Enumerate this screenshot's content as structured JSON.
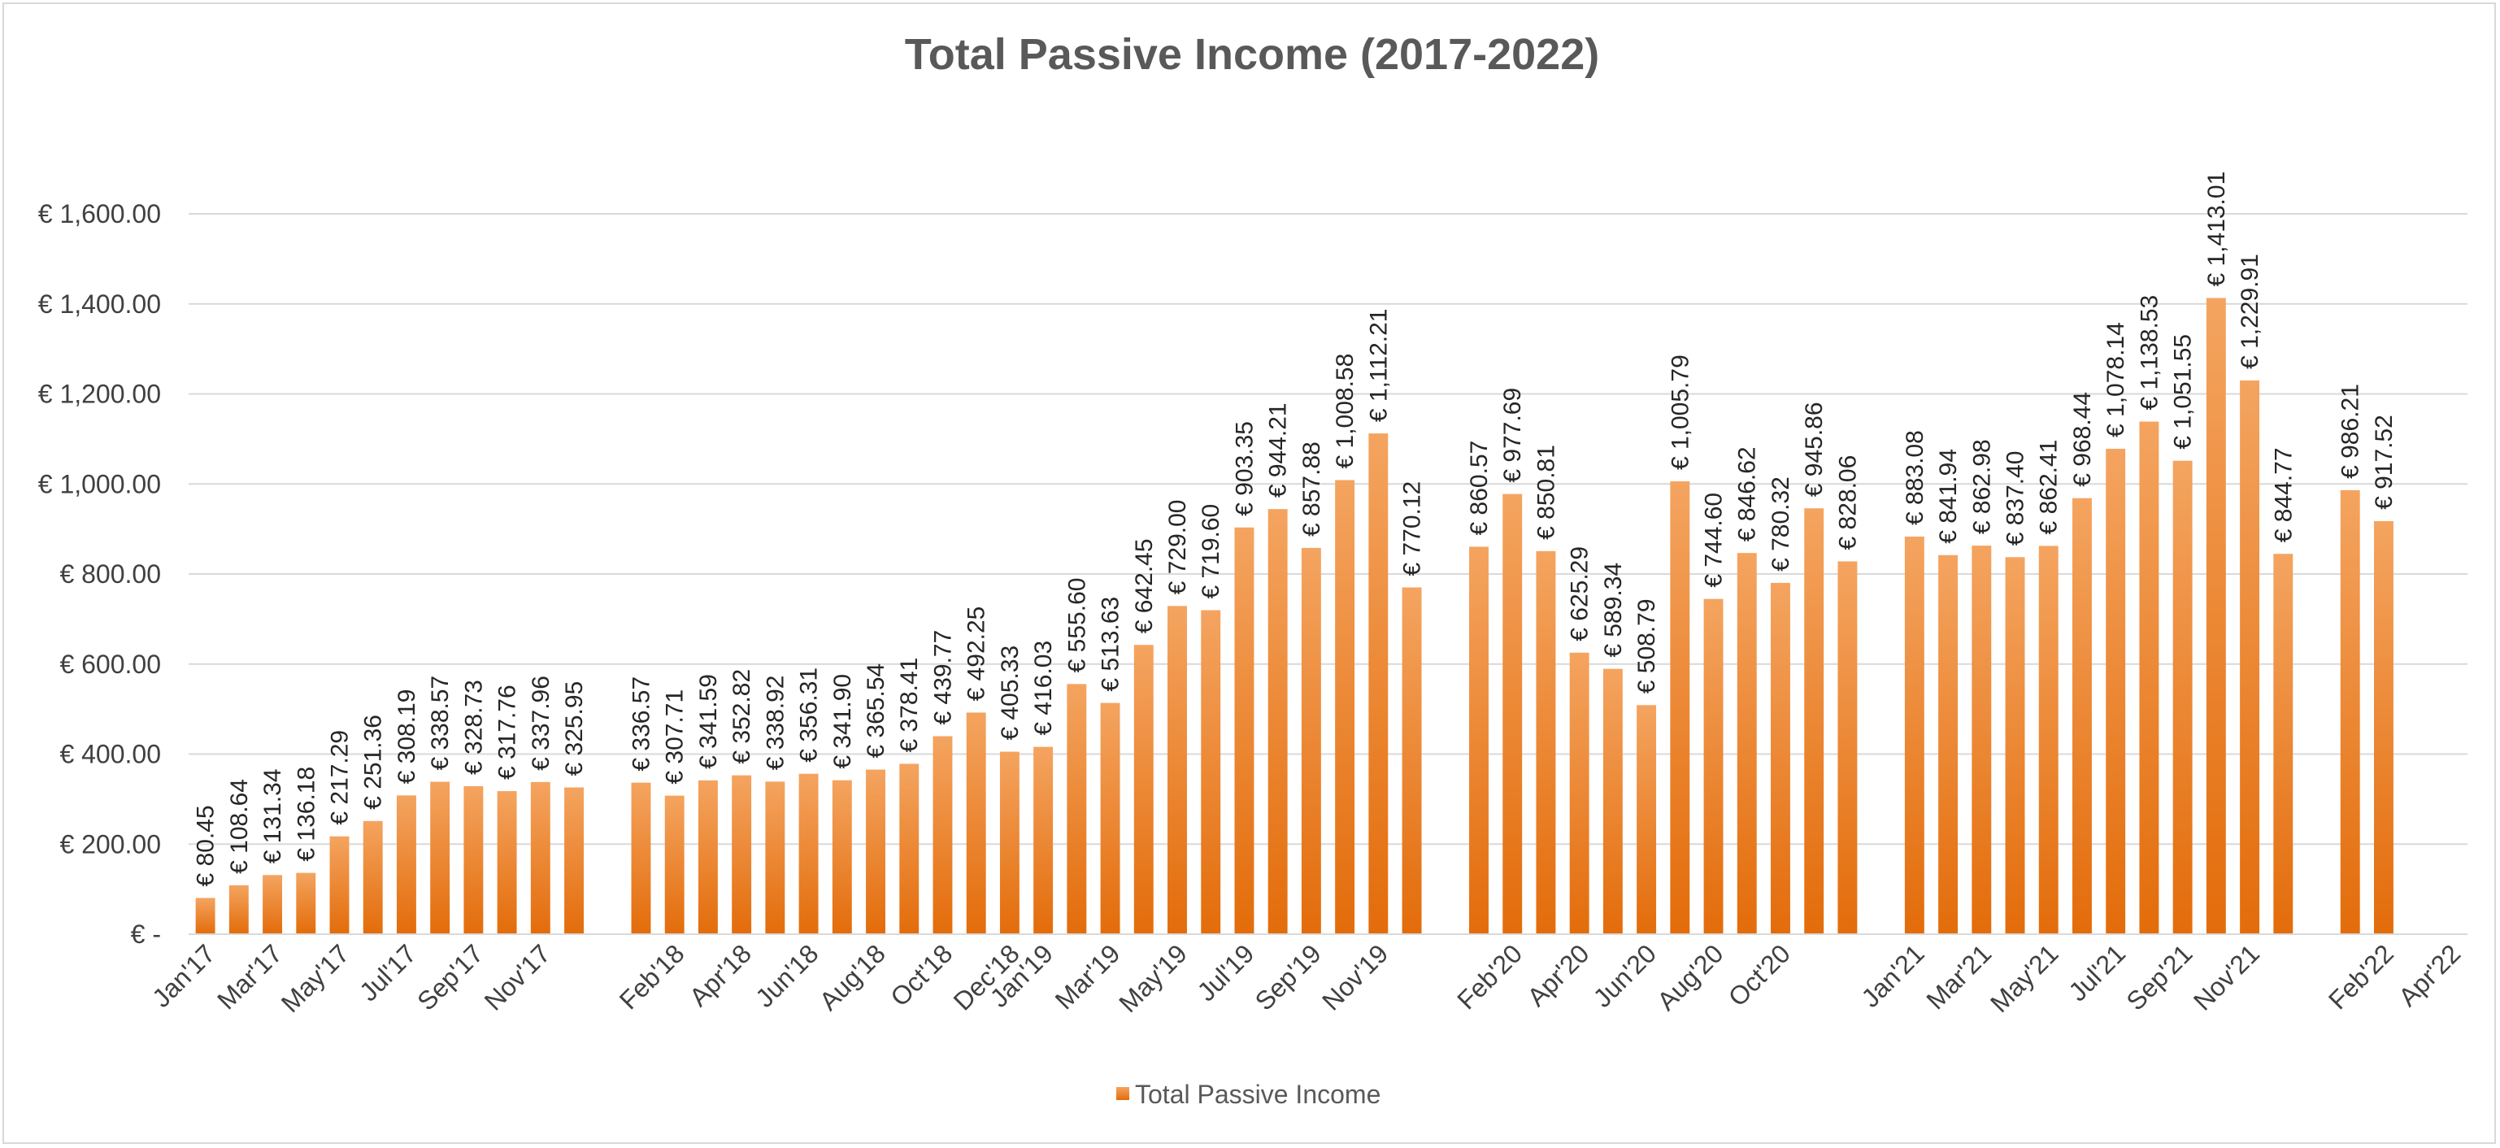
{
  "chart_data": {
    "type": "bar",
    "title": "Total Passive Income (2017-2022)",
    "xlabel": "",
    "ylabel": "",
    "ylim": [
      0,
      1600
    ],
    "grid": true,
    "legend_position": "bottom",
    "y_tick_values": [
      0,
      200,
      400,
      600,
      800,
      1000,
      1200,
      1400,
      1600
    ],
    "y_tick_labels": [
      "€ -",
      "€ 200.00",
      "€ 400.00",
      "€ 600.00",
      "€ 800.00",
      "€ 1,000.00",
      "€ 1,200.00",
      "€ 1,400.00",
      "€ 1,600.00"
    ],
    "colors": {
      "bar_top": "#f4a460",
      "bar_bottom": "#e36c0a",
      "grid": "#d9d9d9",
      "axis": "#d9d9d9"
    },
    "categories": [
      "Jan'17",
      "Feb'17",
      "Mar'17",
      "Apr'17",
      "May'17",
      "Jun'17",
      "Jul'17",
      "Aug'17",
      "Sep'17",
      "Oct'17",
      "Nov'17",
      "Dec'17",
      "",
      "Jan'18",
      "Feb'18",
      "Mar'18",
      "Apr'18",
      "May'18",
      "Jun'18",
      "Jul'18",
      "Aug'18",
      "Sep'18",
      "Oct'18",
      "Nov'18",
      "Dec'18",
      "Jan'19",
      "Feb'19",
      "Mar'19",
      "Apr'19",
      "May'19",
      "Jun'19",
      "Jul'19",
      "Aug'19",
      "Sep'19",
      "Oct'19",
      "Nov'19",
      "Dec'19",
      "",
      "Jan'20",
      "Feb'20",
      "Mar'20",
      "Apr'20",
      "May'20",
      "Jun'20",
      "Jul'20",
      "Aug'20",
      "Sep'20",
      "Oct'20",
      "Nov'20",
      "Dec'20",
      "",
      "Jan'21",
      "Feb'21",
      "Mar'21",
      "Apr'21",
      "May'21",
      "Jun'21",
      "Jul'21",
      "Aug'21",
      "Sep'21",
      "Oct'21",
      "Nov'21",
      "Dec'21",
      "",
      "Jan'22",
      "Feb'22",
      "Mar'22",
      "Apr'22"
    ],
    "x_tick_labels": [
      "Jan'17",
      "Mar'17",
      "May'17",
      "Jul'17",
      "Sep'17",
      "Nov'17",
      "Feb'18",
      "Apr'18",
      "Jun'18",
      "Aug'18",
      "Oct'18",
      "Dec'18",
      "Jan'19",
      "Mar'19",
      "May'19",
      "Jul'19",
      "Sep'19",
      "Nov'19",
      "Feb'20",
      "Apr'20",
      "Jun'20",
      "Aug'20",
      "Oct'20",
      "Jan'21",
      "Mar'21",
      "May'21",
      "Jul'21",
      "Sep'21",
      "Nov'21",
      "Feb'22",
      "Apr'22"
    ],
    "series": [
      {
        "name": "Total Passive Income",
        "values": [
          80.45,
          108.64,
          131.34,
          136.18,
          217.29,
          251.36,
          308.19,
          338.57,
          328.73,
          317.76,
          337.96,
          325.95,
          null,
          336.57,
          307.71,
          341.59,
          352.82,
          338.92,
          356.31,
          341.9,
          365.54,
          378.41,
          439.77,
          492.25,
          405.33,
          416.03,
          555.6,
          513.63,
          642.45,
          729.0,
          719.6,
          903.35,
          944.21,
          857.88,
          1008.58,
          1112.21,
          770.12,
          null,
          860.57,
          977.69,
          850.81,
          625.29,
          589.34,
          508.79,
          1005.79,
          744.6,
          846.62,
          780.32,
          945.86,
          828.06,
          null,
          883.08,
          841.94,
          862.98,
          837.4,
          862.41,
          968.44,
          1078.14,
          1138.53,
          1051.55,
          1413.01,
          1229.91,
          844.77,
          null,
          986.21,
          917.52,
          null,
          null
        ],
        "labels": [
          "€ 80.45",
          "€ 108.64",
          "€ 131.34",
          "€ 136.18",
          "€ 217.29",
          "€ 251.36",
          "€ 308.19",
          "€ 338.57",
          "€ 328.73",
          "€ 317.76",
          "€ 337.96",
          "€ 325.95",
          "",
          "€ 336.57",
          "€ 307.71",
          "€ 341.59",
          "€ 352.82",
          "€ 338.92",
          "€ 356.31",
          "€ 341.90",
          "€ 365.54",
          "€ 378.41",
          "€ 439.77",
          "€ 492.25",
          "€ 405.33",
          "€ 416.03",
          "€ 555.60",
          "€ 513.63",
          "€ 642.45",
          "€ 729.00",
          "€ 719.60",
          "€ 903.35",
          "€ 944.21",
          "€ 857.88",
          "€ 1,008.58",
          "€ 1,112.21",
          "€ 770.12",
          "",
          "€ 860.57",
          "€ 977.69",
          "€ 850.81",
          "€ 625.29",
          "€ 589.34",
          "€ 508.79",
          "€ 1,005.79",
          "€ 744.60",
          "€ 846.62",
          "€ 780.32",
          "€ 945.86",
          "€ 828.06",
          "",
          "€ 883.08",
          "€ 841.94",
          "€ 862.98",
          "€ 837.40",
          "€ 862.41",
          "€ 968.44",
          "€ 1,078.14",
          "€ 1,138.53",
          "€ 1,051.55",
          "€ 1,413.01",
          "€ 1,229.91",
          "€ 844.77",
          "",
          "€ 986.21",
          "€ 917.52",
          "",
          ""
        ]
      }
    ]
  }
}
